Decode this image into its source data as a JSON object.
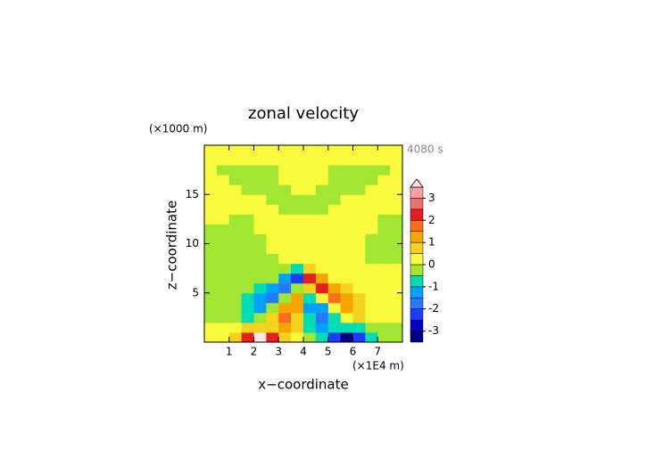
{
  "chart_data": {
    "type": "contour",
    "title": "zonal velocity",
    "time_label": "4080 s",
    "x_label": "x−coordinate",
    "y_label": "z−coordinate",
    "x_unit": "(×1E4 m)",
    "y_unit": "(×1000 m)",
    "xlim": [
      0,
      8
    ],
    "ylim": [
      0,
      20
    ],
    "xticks": [
      1,
      2,
      3,
      4,
      5,
      6,
      7
    ],
    "yticks": [
      5,
      10,
      15
    ],
    "x": [
      0.25,
      0.75,
      1.25,
      1.75,
      2.25,
      2.75,
      3.25,
      3.75,
      4.25,
      4.75,
      5.25,
      5.75,
      6.25,
      6.75,
      7.25,
      7.75
    ],
    "z": [
      0.5,
      1.5,
      2.5,
      3.5,
      4.5,
      5.5,
      6.5,
      7.5,
      8.5,
      9.5,
      10.5,
      11.5,
      12.5,
      13.5,
      14.5,
      15.5,
      16.5,
      17.5,
      18.5,
      19.5
    ],
    "values": [
      [
        0.2,
        0.3,
        0.8,
        2.2,
        3.6,
        2.4,
        0.8,
        0.3,
        -0.3,
        -0.8,
        -2.4,
        -3.6,
        -2.2,
        -0.8,
        -0.3,
        -0.2
      ],
      [
        0.2,
        0.2,
        0.3,
        0.6,
        0.8,
        0.9,
        1.2,
        0.6,
        -0.6,
        -1.2,
        -0.9,
        -0.8,
        -0.6,
        -0.3,
        -0.2,
        -0.2
      ],
      [
        -0.2,
        -0.2,
        -0.3,
        -0.6,
        -0.2,
        0.8,
        1.6,
        0.7,
        -0.7,
        -1.6,
        -0.8,
        0.2,
        0.6,
        0.3,
        0.2,
        0.2
      ],
      [
        -0.2,
        -0.2,
        -0.3,
        -0.8,
        -1.2,
        -0.3,
        1.2,
        1.4,
        -1.4,
        -1.2,
        0.3,
        1.2,
        0.8,
        0.3,
        0.2,
        0.2
      ],
      [
        -0.2,
        -0.2,
        -0.3,
        -0.7,
        -1.1,
        -1.6,
        -0.3,
        1.0,
        -1.0,
        0.3,
        1.6,
        1.1,
        0.7,
        0.3,
        0.2,
        0.2
      ],
      [
        -0.2,
        -0.2,
        -0.2,
        -0.3,
        -0.6,
        -1.2,
        -2.0,
        -0.5,
        0.5,
        2.0,
        1.2,
        0.6,
        0.3,
        0.2,
        0.2,
        0.2
      ],
      [
        -0.2,
        -0.2,
        -0.2,
        -0.2,
        -0.2,
        -0.4,
        -1.2,
        -2.2,
        2.2,
        1.2,
        0.4,
        0.2,
        0.2,
        0.2,
        0.2,
        0.2
      ],
      [
        -0.2,
        -0.2,
        -0.2,
        -0.2,
        -0.2,
        -0.2,
        -0.3,
        -0.8,
        0.8,
        0.3,
        0.2,
        0.2,
        0.2,
        0.2,
        0.2,
        0.2
      ],
      [
        -0.2,
        -0.2,
        -0.2,
        -0.2,
        -0.2,
        -0.2,
        0.2,
        0.2,
        0.2,
        0.2,
        0.2,
        0.2,
        0.2,
        -0.2,
        -0.2,
        -0.2
      ],
      [
        -0.2,
        -0.2,
        -0.2,
        -0.2,
        -0.2,
        0.2,
        0.2,
        0.2,
        0.2,
        0.2,
        0.2,
        0.2,
        0.2,
        -0.2,
        -0.2,
        -0.2
      ],
      [
        -0.2,
        -0.2,
        -0.2,
        -0.2,
        -0.2,
        0.2,
        0.2,
        0.2,
        0.2,
        0.2,
        0.2,
        0.2,
        0.2,
        -0.2,
        -0.2,
        -0.2
      ],
      [
        -0.2,
        -0.2,
        -0.2,
        -0.2,
        0.2,
        0.2,
        0.2,
        0.2,
        0.2,
        0.2,
        0.2,
        0.2,
        0.2,
        0.2,
        -0.2,
        -0.2
      ],
      [
        0.2,
        0.2,
        -0.2,
        -0.2,
        0.2,
        0.2,
        0.2,
        0.2,
        0.2,
        0.2,
        0.2,
        0.2,
        0.2,
        0.2,
        -0.2,
        -0.2
      ],
      [
        0.2,
        0.2,
        0.2,
        0.2,
        0.2,
        0.2,
        -0.2,
        -0.2,
        -0.2,
        -0.2,
        0.2,
        0.2,
        0.2,
        0.2,
        0.2,
        0.2
      ],
      [
        0.2,
        0.2,
        0.2,
        0.2,
        0.2,
        -0.2,
        -0.2,
        -0.2,
        -0.2,
        -0.2,
        -0.2,
        0.2,
        0.2,
        0.2,
        0.2,
        0.2
      ],
      [
        0.2,
        0.2,
        0.2,
        -0.2,
        -0.2,
        -0.2,
        -0.2,
        0.2,
        0.2,
        -0.2,
        -0.2,
        -0.2,
        -0.2,
        0.2,
        0.2,
        0.2
      ],
      [
        0.2,
        0.2,
        -0.2,
        -0.2,
        -0.2,
        -0.2,
        0.2,
        0.2,
        0.2,
        0.2,
        -0.2,
        -0.2,
        -0.2,
        -0.2,
        0.2,
        0.2
      ],
      [
        0.2,
        -0.2,
        -0.2,
        -0.2,
        -0.2,
        -0.2,
        0.2,
        0.2,
        0.2,
        0.2,
        -0.2,
        -0.2,
        -0.2,
        -0.2,
        -0.2,
        0.2
      ],
      [
        0.2,
        0.2,
        0.2,
        0.2,
        0.2,
        0.2,
        0.2,
        0.2,
        0.2,
        0.2,
        0.2,
        0.2,
        0.2,
        0.2,
        0.2,
        0.2
      ],
      [
        0.2,
        0.2,
        0.2,
        0.2,
        0.2,
        0.2,
        0.2,
        0.2,
        0.2,
        0.2,
        0.2,
        0.2,
        0.2,
        0.2,
        0.2,
        0.2
      ]
    ],
    "colorbar": {
      "levels": [
        -3.5,
        -3,
        -2.5,
        -2,
        -1.5,
        -1,
        -0.5,
        0,
        0.5,
        1,
        1.5,
        2,
        2.5,
        3,
        3.5
      ],
      "colors": [
        "#000080",
        "#0000c8",
        "#1e3cff",
        "#2878ff",
        "#00a0ff",
        "#00dcb4",
        "#a0e632",
        "#fafa3c",
        "#f5d21e",
        "#f5a500",
        "#fa6e1e",
        "#e61e1e",
        "#f06e6e",
        "#faa0a0"
      ],
      "over_color": "#ffe6e6",
      "ticks": [
        -3,
        -2,
        -1,
        0,
        1,
        2,
        3
      ]
    }
  }
}
